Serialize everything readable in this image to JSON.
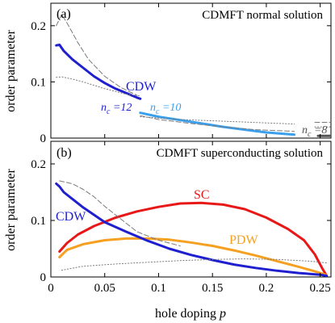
{
  "chart_data": [
    {
      "type": "line",
      "panel_label": "(a)",
      "title": "CDMFT normal solution",
      "ylabel": "order parameter",
      "xlim": [
        0,
        0.26
      ],
      "ylim": [
        0,
        0.24
      ],
      "y_ticks": [
        0,
        0.1,
        0.2
      ],
      "y_tick_labels": [
        "0",
        "0.1",
        "0.2"
      ],
      "annotations": [
        {
          "id": "cdw",
          "text": "CDW",
          "color": "#1f1fd0"
        },
        {
          "id": "nc12",
          "text": "n_c = 12",
          "color": "#1f1fd0"
        },
        {
          "id": "nc10",
          "text": "n_c = 10",
          "color": "#3aa0ee"
        },
        {
          "id": "nc8",
          "text": "n_c = 8",
          "color": "#555555"
        }
      ],
      "series": [
        {
          "id": "cdw_nc12",
          "style": "solid",
          "color": "#1f1fd0",
          "width": 3,
          "x": [
            0.005,
            0.008,
            0.012,
            0.02,
            0.03,
            0.04,
            0.05,
            0.06,
            0.07,
            0.08,
            0.083
          ],
          "y": [
            0.165,
            0.166,
            0.155,
            0.14,
            0.125,
            0.11,
            0.098,
            0.088,
            0.08,
            0.072,
            0.07
          ]
        },
        {
          "id": "cdw_nc10",
          "style": "solid",
          "color": "#3aa0ee",
          "width": 3,
          "x": [
            0.083,
            0.1,
            0.12,
            0.14,
            0.16,
            0.18,
            0.2,
            0.226
          ],
          "y": [
            0.045,
            0.038,
            0.032,
            0.026,
            0.02,
            0.015,
            0.01,
            0.006
          ]
        },
        {
          "id": "cdw_nc8",
          "style": "solid",
          "color": "#555555",
          "width": 3,
          "x": [
            0.248,
            0.26
          ],
          "y": [
            0.004,
            0.004
          ]
        },
        {
          "id": "dash_nc12",
          "style": "dashed",
          "color": "#7a7a7a",
          "width": 1,
          "x": [
            0.005,
            0.01,
            0.015,
            0.025,
            0.035,
            0.05,
            0.065,
            0.08
          ],
          "y": [
            0.2,
            0.22,
            0.205,
            0.17,
            0.14,
            0.11,
            0.09,
            0.076
          ]
        },
        {
          "id": "dash_nc10",
          "style": "dashed",
          "color": "#7a7a7a",
          "width": 1,
          "x": [
            0.083,
            0.1,
            0.13,
            0.16,
            0.19,
            0.226
          ],
          "y": [
            0.04,
            0.033,
            0.026,
            0.02,
            0.015,
            0.012
          ]
        },
        {
          "id": "dash_nc8",
          "style": "dashed",
          "color": "#7a7a7a",
          "width": 1,
          "x": [
            0.245,
            0.26
          ],
          "y": [
            0.028,
            0.028
          ]
        },
        {
          "id": "dot_nc12",
          "style": "dotted",
          "color": "#7a7a7a",
          "width": 1,
          "x": [
            0.005,
            0.01,
            0.02,
            0.03,
            0.04,
            0.05,
            0.06,
            0.07,
            0.083
          ],
          "y": [
            0.108,
            0.109,
            0.105,
            0.1,
            0.094,
            0.088,
            0.083,
            0.078,
            0.075
          ]
        },
        {
          "id": "dot_nc10",
          "style": "dotted",
          "color": "#7a7a7a",
          "width": 1,
          "x": [
            0.083,
            0.12,
            0.16,
            0.2,
            0.226
          ],
          "y": [
            0.038,
            0.033,
            0.03,
            0.027,
            0.025
          ]
        },
        {
          "id": "dot_nc8",
          "style": "dotted",
          "color": "#7a7a7a",
          "width": 1,
          "x": [
            0.245,
            0.26
          ],
          "y": [
            0.02,
            0.02
          ]
        }
      ]
    },
    {
      "type": "line",
      "panel_label": "(b)",
      "title": "CDMFT superconducting solution",
      "xlabel": "hole doping p",
      "ylabel": "order parameter",
      "xlim": [
        0,
        0.26
      ],
      "ylim": [
        0,
        0.24
      ],
      "x_ticks": [
        0,
        0.05,
        0.1,
        0.15,
        0.2,
        0.25
      ],
      "x_tick_labels": [
        "0",
        "0.05",
        "0.1",
        "0.15",
        "0.2",
        "0.25"
      ],
      "y_ticks": [
        0,
        0.1,
        0.2
      ],
      "y_tick_labels": [
        "0",
        "0.1",
        "0.2"
      ],
      "annotations": [
        {
          "id": "sc",
          "text": "SC",
          "color": "#e81818"
        },
        {
          "id": "pdw",
          "text": "PDW",
          "color": "#f5a020"
        },
        {
          "id": "cdw",
          "text": "CDW",
          "color": "#1f1fd0"
        }
      ],
      "series": [
        {
          "id": "SC",
          "style": "solid",
          "color": "#e81818",
          "width": 3,
          "x": [
            0.008,
            0.015,
            0.025,
            0.04,
            0.06,
            0.08,
            0.1,
            0.12,
            0.14,
            0.16,
            0.18,
            0.2,
            0.22,
            0.235,
            0.245,
            0.252,
            0.256
          ],
          "y": [
            0.045,
            0.06,
            0.075,
            0.09,
            0.105,
            0.116,
            0.124,
            0.13,
            0.131,
            0.128,
            0.12,
            0.105,
            0.085,
            0.065,
            0.04,
            0.015,
            0.002
          ]
        },
        {
          "id": "PDW",
          "style": "solid",
          "color": "#f5a020",
          "width": 3,
          "x": [
            0.008,
            0.015,
            0.03,
            0.05,
            0.07,
            0.09,
            0.11,
            0.13,
            0.15,
            0.17,
            0.19,
            0.21,
            0.23,
            0.245,
            0.255
          ],
          "y": [
            0.035,
            0.048,
            0.058,
            0.065,
            0.068,
            0.068,
            0.066,
            0.061,
            0.055,
            0.047,
            0.038,
            0.028,
            0.018,
            0.01,
            0.004
          ]
        },
        {
          "id": "CDW",
          "style": "solid",
          "color": "#1f1fd0",
          "width": 3,
          "x": [
            0.005,
            0.008,
            0.012,
            0.02,
            0.03,
            0.04,
            0.05,
            0.07,
            0.09,
            0.11,
            0.13,
            0.15,
            0.17,
            0.19,
            0.21,
            0.23,
            0.25,
            0.256
          ],
          "y": [
            0.165,
            0.16,
            0.15,
            0.138,
            0.123,
            0.11,
            0.097,
            0.08,
            0.064,
            0.05,
            0.039,
            0.03,
            0.022,
            0.016,
            0.011,
            0.007,
            0.004,
            0.002
          ]
        },
        {
          "id": "dashed",
          "style": "dashed",
          "color": "#7a7a7a",
          "width": 1,
          "x": [
            0.008,
            0.02,
            0.03,
            0.04,
            0.05,
            0.06,
            0.07,
            0.08,
            0.1,
            0.12
          ],
          "y": [
            0.17,
            0.165,
            0.155,
            0.142,
            0.125,
            0.11,
            0.095,
            0.08,
            0.065,
            0.055
          ]
        },
        {
          "id": "dotted",
          "style": "dotted",
          "color": "#7a7a7a",
          "width": 1,
          "x": [
            0.01,
            0.03,
            0.06,
            0.09,
            0.12,
            0.15,
            0.18,
            0.21,
            0.24,
            0.256
          ],
          "y": [
            0.012,
            0.019,
            0.023,
            0.026,
            0.029,
            0.031,
            0.032,
            0.031,
            0.028,
            0.025
          ]
        }
      ]
    }
  ]
}
